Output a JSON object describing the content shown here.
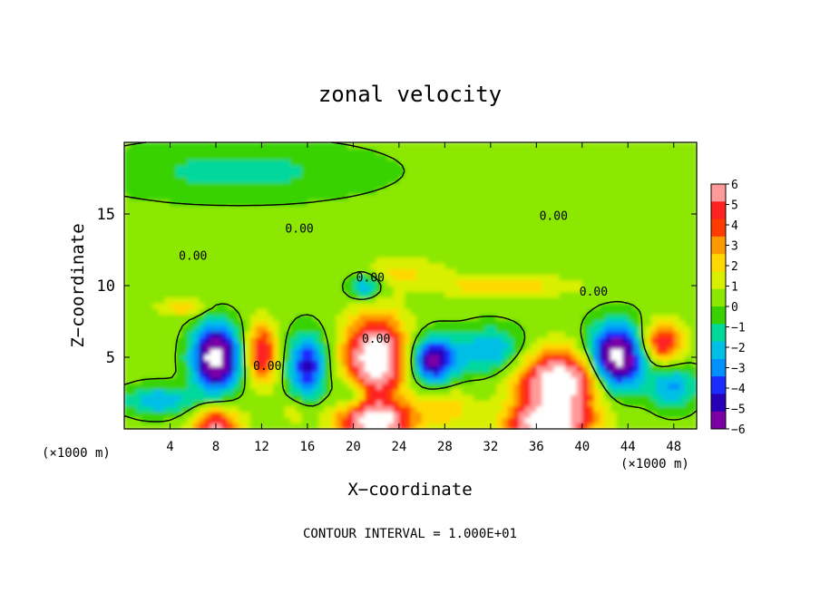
{
  "chart_data": {
    "type": "heatmap",
    "title": "zonal velocity",
    "xlabel": "X−coordinate",
    "ylabel": "Z−coordinate",
    "x_unit_left": "(×1000 m)",
    "x_unit_right": "(×1000 m)",
    "footer": "CONTOUR INTERVAL = 1.000E+01",
    "xlim": [
      0,
      50
    ],
    "ylim": [
      0,
      20
    ],
    "x_ticks": [
      4,
      8,
      12,
      16,
      20,
      24,
      28,
      32,
      36,
      40,
      44,
      48
    ],
    "y_ticks": [
      5,
      10,
      15
    ],
    "colorbar": {
      "range": [
        -6,
        6
      ],
      "ticks": [
        6,
        5,
        4,
        3,
        2,
        1,
        0,
        -1,
        -2,
        -3,
        -4,
        -5,
        -6
      ],
      "colors": [
        "#ff9a9a",
        "#ff2020",
        "#ff3c00",
        "#ff9900",
        "#ffd800",
        "#d8f000",
        "#8ce800",
        "#39d200",
        "#00d89c",
        "#00bfe6",
        "#0090ff",
        "#1a2cff",
        "#2800b8",
        "#7a00a6"
      ]
    },
    "contour_labels": [
      {
        "text": "0.00",
        "x": 15.3,
        "z": 13.7
      },
      {
        "text": "0.00",
        "x": 6.0,
        "z": 11.8
      },
      {
        "text": "0.00",
        "x": 21.5,
        "z": 10.3
      },
      {
        "text": "0.00",
        "x": 37.5,
        "z": 14.6
      },
      {
        "text": "0.00",
        "x": 41.0,
        "z": 9.3
      },
      {
        "text": "0.00",
        "x": 22.0,
        "z": 6.0
      },
      {
        "text": "0.00",
        "x": 12.5,
        "z": 4.1
      }
    ],
    "features": [
      {
        "kind": "max",
        "x": 22,
        "z": 5.0,
        "rx": 2.6,
        "rz": 2.8,
        "value": 8
      },
      {
        "kind": "max",
        "x": 12,
        "z": 5.3,
        "rx": 1.3,
        "rz": 2.0,
        "value": 5
      },
      {
        "kind": "max",
        "x": 38,
        "z": 3.2,
        "rx": 3.5,
        "rz": 2.2,
        "value": 8
      },
      {
        "kind": "max",
        "x": 47,
        "z": 6.0,
        "rx": 1.8,
        "rz": 1.4,
        "value": 5
      },
      {
        "kind": "max",
        "x": 22,
        "z": 0.6,
        "rx": 3.2,
        "rz": 1.3,
        "value": 7
      },
      {
        "kind": "max",
        "x": 8,
        "z": 0.3,
        "rx": 2.0,
        "rz": 1.2,
        "value": 5
      },
      {
        "kind": "max",
        "x": 37,
        "z": 0.4,
        "rx": 3.5,
        "rz": 1.2,
        "value": 7
      },
      {
        "kind": "max",
        "x": 28,
        "z": 1.5,
        "rx": 2.4,
        "rz": 1.4,
        "value": 2
      },
      {
        "kind": "max",
        "x": 15,
        "z": 1.2,
        "rx": 1.5,
        "rz": 1.0,
        "value": 1
      },
      {
        "kind": "max",
        "x": 33,
        "z": 10.0,
        "rx": 6.0,
        "rz": 0.7,
        "value": 2
      },
      {
        "kind": "max",
        "x": 24,
        "z": 11.0,
        "rx": 4.0,
        "rz": 1.0,
        "value": 1.5
      },
      {
        "kind": "max",
        "x": 5,
        "z": 8.5,
        "rx": 2.0,
        "rz": 0.6,
        "value": 2
      },
      {
        "kind": "min",
        "x": 8,
        "z": 5.0,
        "rx": 2.0,
        "rz": 2.2,
        "value": -8
      },
      {
        "kind": "min",
        "x": 16,
        "z": 4.4,
        "rx": 1.6,
        "rz": 2.2,
        "value": -5
      },
      {
        "kind": "min",
        "x": 43,
        "z": 5.0,
        "rx": 2.4,
        "rz": 2.2,
        "value": -8
      },
      {
        "kind": "min",
        "x": 27,
        "z": 4.8,
        "rx": 2.0,
        "rz": 1.6,
        "value": -6
      },
      {
        "kind": "min",
        "x": 32,
        "z": 5.5,
        "rx": 3.0,
        "rz": 1.6,
        "value": -3
      },
      {
        "kind": "min",
        "x": 3,
        "z": 2.0,
        "rx": 3.0,
        "rz": 1.0,
        "value": -3
      },
      {
        "kind": "min",
        "x": 48,
        "z": 3.0,
        "rx": 2.0,
        "rz": 1.6,
        "value": -3
      },
      {
        "kind": "min",
        "x": 21,
        "z": 10.0,
        "rx": 1.5,
        "rz": 1.0,
        "value": -3
      },
      {
        "kind": "min",
        "x": 20,
        "z": 2.5,
        "rx": 1.5,
        "rz": 1.2,
        "value": -2
      },
      {
        "kind": "min",
        "x": 10,
        "z": 18.0,
        "rx": 12.0,
        "rz": 2.0,
        "value": -1.5
      }
    ]
  }
}
